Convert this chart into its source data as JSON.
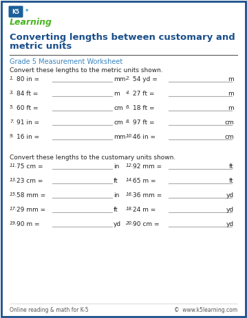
{
  "title_line1": "Converting lengths between customary and",
  "title_line2": "metric units",
  "subtitle": "Grade 5 Measurement Worksheet",
  "section1_instruction": "Convert these lengths to the metric units shown.",
  "section2_instruction": "Convert these lengths to the customary units shown.",
  "section1_problems": [
    [
      "1.",
      "80 in =",
      "mm"
    ],
    [
      "2.",
      "54 yd =",
      "m"
    ],
    [
      "3.",
      "84 ft =",
      "m"
    ],
    [
      "4.",
      "27 ft =",
      "m"
    ],
    [
      "5.",
      "60 ft =",
      "cm"
    ],
    [
      "6.",
      "18 ft =",
      "m"
    ],
    [
      "7.",
      "91 in =",
      "cm"
    ],
    [
      "8.",
      "97 ft =",
      "cm"
    ],
    [
      "9.",
      "16 in =",
      "mm"
    ],
    [
      "10.",
      "46 in =",
      "cm"
    ]
  ],
  "section2_problems": [
    [
      "11.",
      "75 cm =",
      "in"
    ],
    [
      "12.",
      "92 mm =",
      "ft"
    ],
    [
      "13.",
      "23 cm =",
      "ft"
    ],
    [
      "14.",
      "65 m =",
      "ft"
    ],
    [
      "15.",
      "58 mm =",
      "in"
    ],
    [
      "16.",
      "36 mm =",
      "yd"
    ],
    [
      "17.",
      "29 mm =",
      "ft"
    ],
    [
      "18.",
      "24 m =",
      "yd"
    ],
    [
      "19.",
      "90 m =",
      "yd"
    ],
    [
      "20.",
      "90 cm =",
      "yd"
    ]
  ],
  "footer_left": "Online reading & math for K-5",
  "footer_right": "©  www.k5learning.com",
  "title_color": "#1a4f8a",
  "subtitle_color": "#3a85c0",
  "border_color": "#1a4f8a",
  "line_color": "#aaaaaa",
  "rule_color": "#555555",
  "bg_color": "#ffffff",
  "text_color": "#222222",
  "footer_color": "#555555",
  "logo_badge_color": "#1a5f9a",
  "logo_text_color": "#4ab520"
}
